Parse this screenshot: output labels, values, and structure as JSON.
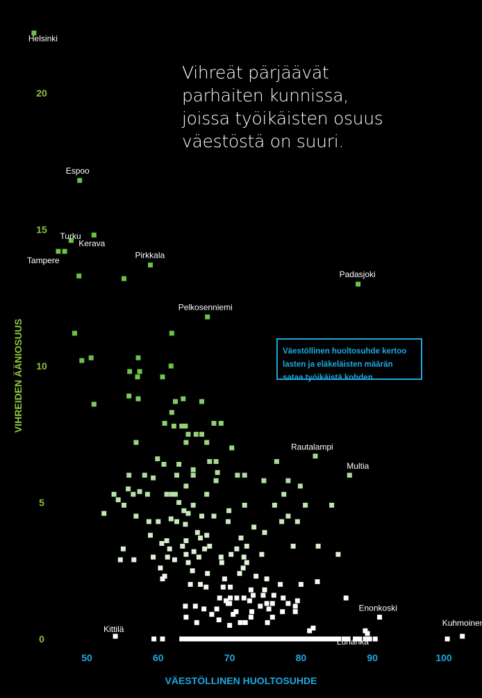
{
  "headline": {
    "lines": [
      "Vihreät pärjäävät",
      "parhaiten kunnissa,",
      "joissa työikäisten osuus",
      "väestöstä on suuri."
    ]
  },
  "info_box": {
    "lines": [
      "Väestöllinen huoltosuhde kertoo",
      "lasten ja eläkeläisten määrän",
      "sataa työikäistä kohden."
    ]
  },
  "colors": {
    "background": "#000000",
    "y_axis": "#8dc63f",
    "x_axis": "#1ea8e0",
    "high_support": "#6cc24a",
    "low_support": "#ffffff",
    "label_text": "#ffffff"
  },
  "chart_data": {
    "type": "scatter",
    "xlabel": "VÄESTÖLLINEN HUOLTOSUHDE",
    "ylabel": "VIHREIDEN ÄÄNIOSUUS",
    "xlim": [
      45,
      104
    ],
    "ylim": [
      0,
      23
    ],
    "x_ticks": [
      50,
      60,
      70,
      80,
      90,
      100
    ],
    "y_ticks": [
      0,
      5,
      10,
      15,
      20
    ],
    "grid": false,
    "legend": "none",
    "color_scale": "green at high vote share fading to white at low vote share",
    "labeled_points": [
      {
        "name": "Helsinki",
        "x": 42.6,
        "y": 22.2
      },
      {
        "name": "Espoo",
        "x": 49.0,
        "y": 16.8
      },
      {
        "name": "Turku",
        "x": 47.8,
        "y": 14.6
      },
      {
        "name": "Kerava",
        "x": 51.0,
        "y": 14.8
      },
      {
        "name": "Tampere",
        "x": 46.0,
        "y": 14.2
      },
      {
        "name": "Pirkkala",
        "x": 58.9,
        "y": 13.7
      },
      {
        "name": "Padasjoki",
        "x": 88.0,
        "y": 13.0
      },
      {
        "name": "Pelkosenniemi",
        "x": 66.9,
        "y": 11.8
      },
      {
        "name": "Rautalampi",
        "x": 82.0,
        "y": 6.7
      },
      {
        "name": "Multia",
        "x": 86.8,
        "y": 6.0
      },
      {
        "name": "Enonkoski",
        "x": 91.0,
        "y": 0.8
      },
      {
        "name": "Kuhmoinen",
        "x": 102.6,
        "y": 0.1
      },
      {
        "name": "Kittilä",
        "x": 54.0,
        "y": 0.1
      },
      {
        "name": "Luhanka",
        "x": 89.0,
        "y": 0.3
      }
    ],
    "points": [
      [
        46.9,
        14.2
      ],
      [
        48.9,
        13.3
      ],
      [
        55.2,
        13.2
      ],
      [
        48.3,
        11.2
      ],
      [
        61.9,
        11.2
      ],
      [
        49.3,
        10.2
      ],
      [
        50.6,
        10.3
      ],
      [
        57.2,
        10.3
      ],
      [
        61.8,
        10.0
      ],
      [
        56.0,
        9.8
      ],
      [
        57.4,
        9.8
      ],
      [
        57.1,
        9.6
      ],
      [
        60.6,
        9.6
      ],
      [
        55.9,
        8.9
      ],
      [
        57.2,
        8.8
      ],
      [
        62.4,
        8.7
      ],
      [
        63.5,
        8.8
      ],
      [
        66.1,
        8.7
      ],
      [
        51.0,
        8.6
      ],
      [
        61.9,
        8.3
      ],
      [
        60.9,
        7.9
      ],
      [
        62.2,
        7.8
      ],
      [
        63.3,
        7.8
      ],
      [
        63.8,
        7.8
      ],
      [
        67.8,
        7.9
      ],
      [
        68.8,
        7.9
      ],
      [
        64.2,
        7.5
      ],
      [
        65.3,
        7.5
      ],
      [
        66.1,
        7.5
      ],
      [
        56.9,
        7.2
      ],
      [
        63.9,
        7.2
      ],
      [
        66.8,
        7.2
      ],
      [
        70.3,
        7.0
      ],
      [
        59.9,
        6.6
      ],
      [
        60.8,
        6.4
      ],
      [
        62.9,
        6.4
      ],
      [
        67.2,
        6.5
      ],
      [
        68.1,
        6.5
      ],
      [
        76.6,
        6.5
      ],
      [
        64.9,
        6.2
      ],
      [
        68.3,
        6.1
      ],
      [
        55.9,
        6.0
      ],
      [
        58.1,
        6.0
      ],
      [
        62.6,
        6.0
      ],
      [
        64.9,
        6.0
      ],
      [
        71.1,
        6.0
      ],
      [
        72.1,
        6.0
      ],
      [
        59.3,
        5.9
      ],
      [
        68.1,
        5.8
      ],
      [
        74.8,
        5.8
      ],
      [
        78.2,
        5.8
      ],
      [
        55.8,
        5.5
      ],
      [
        57.4,
        5.4
      ],
      [
        63.9,
        5.6
      ],
      [
        79.9,
        5.6
      ],
      [
        53.8,
        5.3
      ],
      [
        56.5,
        5.3
      ],
      [
        58.5,
        5.3
      ],
      [
        61.2,
        5.3
      ],
      [
        61.9,
        5.3
      ],
      [
        62.4,
        5.3
      ],
      [
        66.8,
        5.3
      ],
      [
        77.6,
        5.3
      ],
      [
        54.4,
        5.1
      ],
      [
        62.9,
        5.0
      ],
      [
        55.2,
        4.9
      ],
      [
        64.9,
        4.9
      ],
      [
        72.1,
        4.9
      ],
      [
        76.3,
        4.9
      ],
      [
        80.6,
        4.9
      ],
      [
        84.3,
        4.9
      ],
      [
        63.6,
        4.7
      ],
      [
        69.9,
        4.7
      ],
      [
        52.4,
        4.6
      ],
      [
        56.9,
        4.5
      ],
      [
        64.2,
        4.6
      ],
      [
        66.1,
        4.5
      ],
      [
        67.8,
        4.5
      ],
      [
        78.2,
        4.5
      ],
      [
        58.7,
        4.3
      ],
      [
        60.0,
        4.3
      ],
      [
        61.8,
        4.4
      ],
      [
        62.6,
        4.3
      ],
      [
        63.8,
        4.2
      ],
      [
        69.8,
        4.3
      ],
      [
        73.4,
        4.1
      ],
      [
        77.3,
        4.3
      ],
      [
        79.5,
        4.3
      ],
      [
        65.5,
        3.9
      ],
      [
        66.8,
        3.8
      ],
      [
        74.9,
        3.9
      ],
      [
        58.9,
        3.8
      ],
      [
        65.9,
        3.7
      ],
      [
        71.6,
        3.7
      ],
      [
        61.2,
        3.6
      ],
      [
        63.9,
        3.6
      ],
      [
        60.5,
        3.5
      ],
      [
        67.2,
        3.4
      ],
      [
        63.4,
        3.4
      ],
      [
        78.9,
        3.4
      ],
      [
        82.4,
        3.4
      ],
      [
        71.0,
        3.3
      ],
      [
        72.4,
        3.4
      ],
      [
        55.1,
        3.3
      ],
      [
        61.6,
        3.3
      ],
      [
        65.0,
        3.2
      ],
      [
        66.5,
        3.3
      ],
      [
        63.9,
        3.1
      ],
      [
        70.2,
        3.1
      ],
      [
        74.5,
        3.1
      ],
      [
        85.2,
        3.1
      ],
      [
        59.3,
        3.0
      ],
      [
        61.3,
        3.0
      ],
      [
        65.7,
        3.0
      ],
      [
        68.8,
        3.0
      ],
      [
        72.0,
        3.0
      ],
      [
        54.7,
        2.9
      ],
      [
        56.6,
        2.9
      ],
      [
        62.3,
        2.9
      ],
      [
        64.2,
        2.8
      ],
      [
        68.9,
        2.8
      ],
      [
        72.4,
        2.8
      ],
      [
        60.3,
        2.6
      ],
      [
        71.9,
        2.6
      ],
      [
        64.8,
        2.5
      ],
      [
        66.9,
        2.4
      ],
      [
        71.4,
        2.4
      ],
      [
        60.9,
        2.3
      ],
      [
        73.7,
        2.3
      ],
      [
        60.6,
        2.2
      ],
      [
        69.3,
        2.2
      ],
      [
        75.2,
        2.2
      ],
      [
        77.1,
        2.0
      ],
      [
        64.5,
        2.0
      ],
      [
        65.9,
        2.0
      ],
      [
        69.1,
        1.9
      ],
      [
        80.0,
        2.0
      ],
      [
        70.1,
        1.9
      ],
      [
        82.3,
        2.1
      ],
      [
        66.7,
        1.9
      ],
      [
        73.0,
        1.8
      ],
      [
        74.9,
        1.8
      ],
      [
        72.0,
        1.5
      ],
      [
        74.7,
        1.6
      ],
      [
        76.2,
        1.6
      ],
      [
        68.6,
        1.5
      ],
      [
        70.1,
        1.5
      ],
      [
        71.0,
        1.5
      ],
      [
        73.3,
        1.6
      ],
      [
        77.5,
        1.5
      ],
      [
        69.5,
        1.4
      ],
      [
        72.8,
        1.4
      ],
      [
        75.2,
        1.3
      ],
      [
        76.0,
        1.3
      ],
      [
        78.2,
        1.3
      ],
      [
        63.8,
        1.2
      ],
      [
        65.2,
        1.2
      ],
      [
        69.8,
        1.3
      ],
      [
        70.0,
        1.3
      ],
      [
        74.3,
        1.2
      ],
      [
        79.2,
        1.2
      ],
      [
        79.5,
        1.4
      ],
      [
        86.3,
        1.5
      ],
      [
        66.4,
        1.1
      ],
      [
        68.2,
        1.1
      ],
      [
        70.9,
        1.0
      ],
      [
        73.1,
        1.0
      ],
      [
        75.5,
        1.1
      ],
      [
        77.4,
        1.0
      ],
      [
        79.2,
        1.0
      ],
      [
        67.5,
        0.9
      ],
      [
        70.5,
        0.9
      ],
      [
        73.0,
        0.8
      ],
      [
        76.0,
        0.8
      ],
      [
        63.9,
        0.8
      ],
      [
        71.5,
        0.6
      ],
      [
        72.2,
        0.6
      ],
      [
        75.3,
        0.6
      ],
      [
        65.4,
        0.6
      ],
      [
        68.5,
        0.7
      ],
      [
        70.0,
        0.5
      ],
      [
        81.7,
        0.4
      ],
      [
        81.2,
        0.3
      ],
      [
        89.3,
        0.2
      ]
    ],
    "zero_row_x": [
      59.4,
      60.6,
      63.3,
      63.8,
      64.2,
      64.6,
      65.2,
      65.5,
      66.0,
      66.5,
      67.5,
      68.2,
      68.7,
      69.1,
      69.6,
      70.1,
      70.5,
      71.2,
      71.8,
      72.3,
      72.8,
      73.3,
      73.8,
      74.3,
      74.8,
      75.2,
      75.7,
      76.2,
      76.7,
      77.2,
      77.7,
      78.2,
      78.7,
      79.2,
      79.7,
      80.2,
      80.7,
      81.2,
      81.7,
      82.2,
      82.7,
      83.2,
      83.7,
      84.2,
      84.7,
      85.2,
      86.0,
      86.6,
      87.6,
      88.2,
      89.0,
      89.6,
      90.4,
      100.5
    ]
  }
}
